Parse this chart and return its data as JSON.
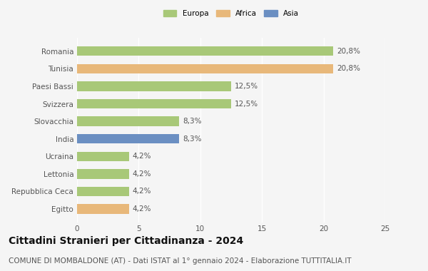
{
  "categories": [
    "Romania",
    "Tunisia",
    "Paesi Bassi",
    "Svizzera",
    "Slovacchia",
    "India",
    "Ucraina",
    "Lettonia",
    "Repubblica Ceca",
    "Egitto"
  ],
  "values": [
    20.8,
    20.8,
    12.5,
    12.5,
    8.3,
    8.3,
    4.2,
    4.2,
    4.2,
    4.2
  ],
  "labels": [
    "20,8%",
    "20,8%",
    "12,5%",
    "12,5%",
    "8,3%",
    "8,3%",
    "4,2%",
    "4,2%",
    "4,2%",
    "4,2%"
  ],
  "colors": [
    "#a8c878",
    "#e8b87a",
    "#a8c878",
    "#a8c878",
    "#a8c878",
    "#6b8fc2",
    "#a8c878",
    "#a8c878",
    "#a8c878",
    "#e8b87a"
  ],
  "legend_labels": [
    "Europa",
    "Africa",
    "Asia"
  ],
  "legend_colors": [
    "#a8c878",
    "#e8b87a",
    "#6b8fc2"
  ],
  "xlim": [
    0,
    25
  ],
  "xticks": [
    0,
    5,
    10,
    15,
    20,
    25
  ],
  "title": "Cittadini Stranieri per Cittadinanza - 2024",
  "subtitle": "COMUNE DI MOMBALDONE (AT) - Dati ISTAT al 1° gennaio 2024 - Elaborazione TUTTITALIA.IT",
  "title_fontsize": 10,
  "subtitle_fontsize": 7.5,
  "label_fontsize": 7.5,
  "tick_fontsize": 7.5,
  "bg_color": "#f5f5f5",
  "bar_height": 0.55,
  "grid_color": "#ffffff",
  "label_color": "#555555",
  "title_color": "#111111"
}
